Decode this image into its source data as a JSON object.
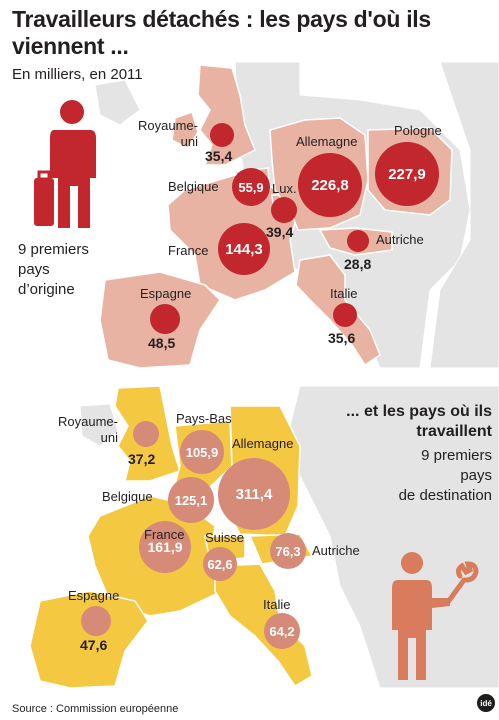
{
  "title": "Travailleurs détachés : les pays d'où ils viennent ...",
  "subtitle": "En milliers, en 2011",
  "origin": {
    "caption": "9 premiers\npays\nd’origine",
    "countries": [
      {
        "name": "Royaume-\nuni",
        "value": "35,4"
      },
      {
        "name": "Allemagne",
        "value": "226,8"
      },
      {
        "name": "Pologne",
        "value": "227,9"
      },
      {
        "name": "Belgique",
        "value": "55,9"
      },
      {
        "name": "Lux.",
        "value": "39,4"
      },
      {
        "name": "France",
        "value": "144,3"
      },
      {
        "name": "Autriche",
        "value": "28,8"
      },
      {
        "name": "Espagne",
        "value": "48,5"
      },
      {
        "name": "Italie",
        "value": "35,6"
      }
    ]
  },
  "destination": {
    "heading": "... et les pays où ils\ntravaillent",
    "caption": "9 premiers\npays\nde destination",
    "countries": [
      {
        "name": "Royaume-\nuni",
        "value": "37,2"
      },
      {
        "name": "Pays-Bas",
        "value": "105,9"
      },
      {
        "name": "Allemagne",
        "value": "311,4"
      },
      {
        "name": "Belgique",
        "value": "125,1"
      },
      {
        "name": "France",
        "value": "161,9"
      },
      {
        "name": "Suisse",
        "value": "62,6"
      },
      {
        "name": "Autriche",
        "value": "76,3"
      },
      {
        "name": "Espagne",
        "value": "47,6"
      },
      {
        "name": "Italie",
        "value": "64,2"
      }
    ]
  },
  "source": "Source : Commission européenne",
  "logo_text": "idé",
  "colors": {
    "origin_land": "#e8b3a3",
    "origin_bubble": "#c1272d",
    "dest_land": "#f5c842",
    "dest_bubble": "#d68a78",
    "other_land": "#e4e4e4",
    "sea": "#ffffff",
    "person_red": "#c1272d",
    "person_orange": "#d97b5d"
  }
}
